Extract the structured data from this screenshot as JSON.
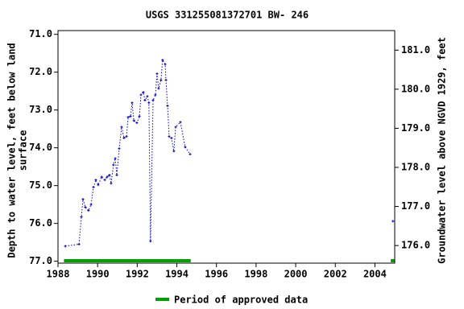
{
  "chart_data": {
    "type": "line",
    "title": "USGS 331255081372701 BW- 246",
    "ylabel": [
      "Depth to water level, feet below land",
      "surface"
    ],
    "y2label": "Groundwater level above NGVD 1929, feet",
    "xlim": [
      1988,
      2005
    ],
    "xticks": [
      1988,
      1990,
      1992,
      1994,
      1996,
      1998,
      2000,
      2002,
      2004
    ],
    "ylim": [
      70.9,
      77.05
    ],
    "yinverted": true,
    "yticks": [
      {
        "value": 71,
        "label": "71.0"
      },
      {
        "value": 72,
        "label": "72.0"
      },
      {
        "value": 73,
        "label": "73.0"
      },
      {
        "value": 74,
        "label": "74.0"
      },
      {
        "value": 75,
        "label": "75.0"
      },
      {
        "value": 76,
        "label": "76.0"
      },
      {
        "value": 77,
        "label": "77.0"
      }
    ],
    "y2lim": [
      175.55,
      181.5
    ],
    "y2ticks": [
      {
        "value": 176,
        "label": "176.0"
      },
      {
        "value": 177,
        "label": "177.0"
      },
      {
        "value": 178,
        "label": "178.0"
      },
      {
        "value": 179,
        "label": "179.0"
      },
      {
        "value": 180,
        "label": "180.0"
      },
      {
        "value": 181,
        "label": "181.0"
      }
    ],
    "series": [
      {
        "name": "Depth to water level",
        "color": "#0000cc",
        "x": [
          1988.37,
          1989.06,
          1989.18,
          1989.26,
          1989.38,
          1989.54,
          1989.67,
          1989.79,
          1989.91,
          1990.03,
          1990.2,
          1990.36,
          1990.48,
          1990.6,
          1990.68,
          1990.8,
          1990.89,
          1990.97,
          1991.09,
          1991.21,
          1991.33,
          1991.46,
          1991.54,
          1991.66,
          1991.74,
          1991.83,
          1991.98,
          1992.11,
          1992.19,
          1992.31,
          1992.39,
          1992.51,
          1992.59,
          1992.67,
          1992.8,
          1992.92,
          1993.0,
          1993.08,
          1993.2,
          1993.28,
          1993.41,
          1993.45,
          1993.53,
          1993.61,
          1993.73,
          1993.85,
          1993.94,
          1994.18,
          1994.42,
          1994.67,
          null,
          2004.91
        ],
        "values": [
          76.6,
          76.55,
          75.83,
          75.36,
          75.57,
          75.66,
          75.5,
          75.04,
          74.85,
          74.98,
          74.77,
          74.85,
          74.77,
          74.72,
          74.94,
          74.45,
          74.28,
          74.72,
          74.02,
          73.45,
          73.74,
          73.7,
          73.19,
          73.17,
          72.81,
          73.28,
          73.34,
          73.17,
          72.6,
          72.53,
          72.74,
          72.64,
          72.81,
          76.47,
          72.74,
          72.6,
          72.04,
          72.43,
          72.21,
          71.68,
          71.79,
          72.21,
          72.89,
          73.7,
          73.74,
          74.09,
          73.45,
          73.32,
          73.98,
          74.17,
          null,
          75.94
        ]
      }
    ],
    "approved": {
      "name": "Period of approved data",
      "color": "#00a000",
      "periods": [
        [
          1988.3,
          1994.7
        ],
        [
          2004.8,
          2004.98
        ]
      ]
    }
  }
}
